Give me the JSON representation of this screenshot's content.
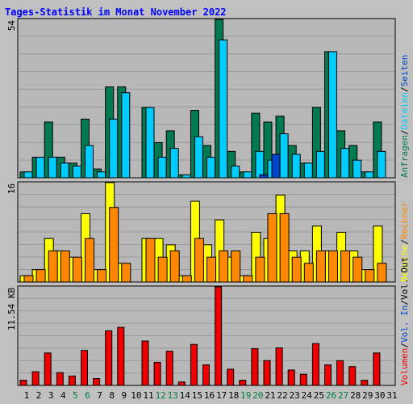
{
  "page": {
    "title": "Tages-Statistik im Monat November 2022",
    "colors": {
      "background": "#c0c0c0",
      "plot_bg": "#b8b8b8",
      "gridline": "#9a9a9a",
      "title": "#0000ff",
      "anfragen": "#007a4e",
      "dateien": "#00ccff",
      "seiten": "#0044cc",
      "besuche": "#ffff00",
      "rechner": "#ff8800",
      "volumen": "#ee0000",
      "weekend_day": "#008040",
      "weekday": "#000000"
    }
  },
  "chart_data": [
    {
      "type": "bar",
      "ymax_label": "54",
      "ylim": [
        0,
        54
      ],
      "categories": [
        "1",
        "2",
        "3",
        "4",
        "5",
        "6",
        "7",
        "8",
        "9",
        "10",
        "11",
        "12",
        "13",
        "14",
        "15",
        "16",
        "17",
        "18",
        "19",
        "20",
        "21",
        "22",
        "23",
        "24",
        "25",
        "26",
        "27",
        "28",
        "29",
        "30",
        "31"
      ],
      "weekend_days": [
        "5",
        "6",
        "12",
        "13",
        "19",
        "20",
        "26",
        "27"
      ],
      "legend": [
        "Anfragen",
        "/",
        "Dateien",
        "/",
        "Seiten"
      ],
      "series": [
        {
          "name": "Anfragen",
          "color": "#007a4e",
          "values": [
            2,
            7,
            19,
            7,
            5,
            20,
            3,
            31,
            31,
            0,
            24,
            12,
            16,
            1,
            23,
            11,
            54,
            9,
            2,
            22,
            19,
            21,
            11,
            5,
            24,
            43,
            16,
            11,
            2,
            19,
            null
          ]
        },
        {
          "name": "Dateien",
          "color": "#00ccff",
          "values": [
            2,
            7,
            7,
            5,
            4,
            11,
            2,
            20,
            29,
            0,
            24,
            7,
            10,
            1,
            14,
            7,
            47,
            4,
            2,
            9,
            6,
            15,
            8,
            5,
            9,
            43,
            10,
            6,
            2,
            9,
            null
          ]
        },
        {
          "name": "Seiten",
          "color": "#0044cc",
          "values": [
            0,
            0,
            0,
            0,
            0,
            0,
            0,
            0,
            0,
            0,
            0,
            0,
            0,
            0,
            0,
            0,
            0,
            0,
            0,
            1,
            8,
            0,
            0,
            0,
            0,
            0,
            0,
            0,
            0,
            0,
            null
          ]
        }
      ]
    },
    {
      "type": "bar",
      "ymax_label": "16",
      "ylim": [
        0,
        16
      ],
      "categories": [
        "1",
        "2",
        "3",
        "4",
        "5",
        "6",
        "7",
        "8",
        "9",
        "10",
        "11",
        "12",
        "13",
        "14",
        "15",
        "16",
        "17",
        "18",
        "19",
        "20",
        "21",
        "22",
        "23",
        "24",
        "25",
        "26",
        "27",
        "28",
        "29",
        "30",
        "31"
      ],
      "legend": [
        "Besuche",
        "/",
        "Rechner"
      ],
      "series": [
        {
          "name": "Besuche",
          "color": "#ffff00",
          "values": [
            1,
            2,
            7,
            5,
            4,
            11,
            2,
            16,
            3,
            0,
            7,
            7,
            6,
            1,
            13,
            6,
            10,
            4,
            1,
            8,
            7,
            14,
            5,
            5,
            9,
            5,
            8,
            5,
            2,
            9,
            null
          ]
        },
        {
          "name": "Rechner",
          "color": "#ff8800",
          "values": [
            1,
            2,
            5,
            5,
            4,
            7,
            2,
            12,
            3,
            0,
            7,
            4,
            5,
            1,
            7,
            4,
            5,
            5,
            1,
            4,
            11,
            11,
            4,
            3,
            5,
            5,
            5,
            4,
            2,
            3,
            null
          ]
        }
      ]
    },
    {
      "type": "bar",
      "ymax_label": "11.54 KB",
      "ylim": [
        0,
        11.54
      ],
      "unit": "KB",
      "categories": [
        "1",
        "2",
        "3",
        "4",
        "5",
        "6",
        "7",
        "8",
        "9",
        "10",
        "11",
        "12",
        "13",
        "14",
        "15",
        "16",
        "17",
        "18",
        "19",
        "20",
        "21",
        "22",
        "23",
        "24",
        "25",
        "26",
        "27",
        "28",
        "29",
        "30",
        "31"
      ],
      "legend": [
        "Volumen",
        "/",
        "Vol. In",
        "/",
        "Vol. Out"
      ],
      "series": [
        {
          "name": "Volumen",
          "color": "#ee0000",
          "values": [
            0.6,
            1.6,
            3.8,
            1.5,
            1.1,
            4.1,
            0.8,
            6.4,
            6.8,
            0,
            5.2,
            2.7,
            4.0,
            0.4,
            4.8,
            2.4,
            11.54,
            1.9,
            0.6,
            4.3,
            2.9,
            4.4,
            1.8,
            1.3,
            4.9,
            2.4,
            2.9,
            2.2,
            0.6,
            3.8,
            null
          ]
        }
      ]
    }
  ]
}
